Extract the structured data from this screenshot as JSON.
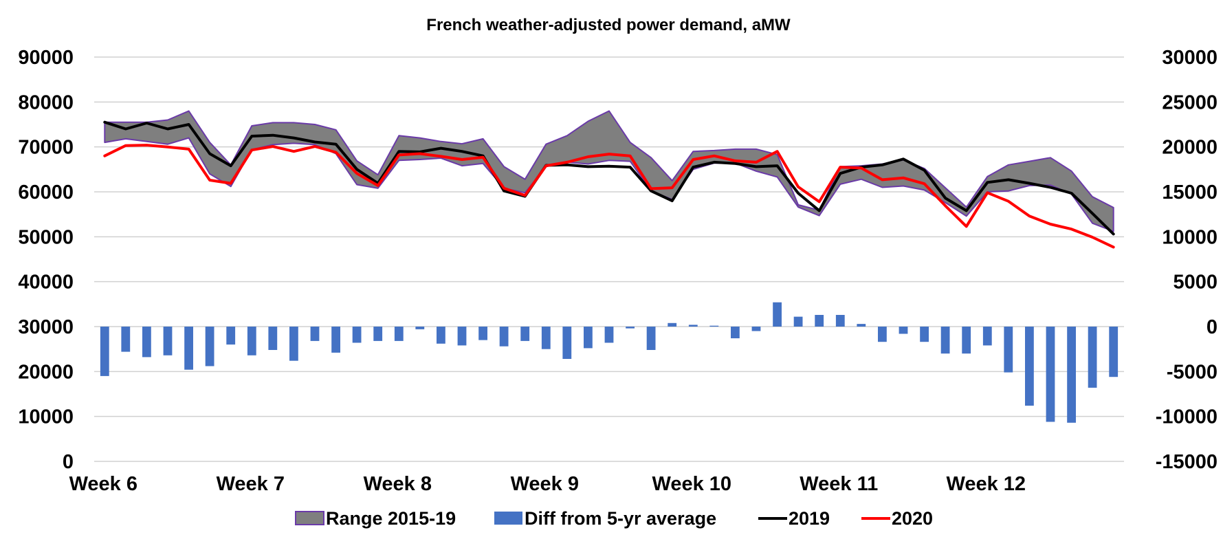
{
  "chart_data": {
    "type": "line",
    "title": "French weather-adjusted power demand, aMW",
    "x_labels": [
      "Week 6",
      "",
      "",
      "",
      "",
      "",
      "",
      "Week 7",
      "",
      "",
      "",
      "",
      "",
      "",
      "Week 8",
      "",
      "",
      "",
      "",
      "",
      "",
      "Week 9",
      "",
      "",
      "",
      "",
      "",
      "",
      "Week 10",
      "",
      "",
      "",
      "",
      "",
      "",
      "Week 11",
      "",
      "",
      "",
      "",
      "",
      "",
      "Week 12",
      "",
      "",
      "",
      "",
      "",
      ""
    ],
    "y_left": {
      "min": 0,
      "max": 90000,
      "ticks": [
        "0",
        "10000",
        "20000",
        "30000",
        "40000",
        "50000",
        "60000",
        "70000",
        "80000",
        "90000"
      ]
    },
    "y_right": {
      "min": -15000,
      "max": 30000,
      "ticks": [
        "-15000",
        "-10000",
        "-5000",
        "0",
        "5000",
        "10000",
        "15000",
        "20000",
        "25000",
        "30000"
      ]
    },
    "grid": true,
    "legend_position": "bottom",
    "series": [
      {
        "name": "Range 2015-19",
        "type": "area-range",
        "axis": "left",
        "color": "#7f7f7f",
        "border_color": "#6a3aa8",
        "upper": [
          75500,
          75500,
          75500,
          76000,
          78000,
          71000,
          66000,
          74700,
          75400,
          75400,
          75000,
          73800,
          66900,
          63800,
          72500,
          72000,
          71200,
          70700,
          71800,
          65600,
          62800,
          70600,
          72500,
          75700,
          78000,
          71000,
          67600,
          62500,
          69000,
          69200,
          69500,
          69500,
          68300,
          57100,
          55900,
          65600,
          65800,
          66200,
          67100,
          65200,
          60900,
          56600,
          63400,
          66000,
          66800,
          67600,
          64600,
          58900,
          56500
        ],
        "lower": [
          71000,
          71800,
          71200,
          70600,
          72000,
          64000,
          61200,
          69400,
          70500,
          70800,
          70500,
          68500,
          61600,
          60800,
          67000,
          67200,
          67500,
          65800,
          66300,
          60800,
          59800,
          65600,
          66600,
          66200,
          67000,
          66800,
          60200,
          58300,
          65000,
          66400,
          66400,
          64600,
          63300,
          56600,
          54700,
          61700,
          62800,
          61000,
          61300,
          60400,
          57600,
          54600,
          60000,
          60200,
          61400,
          61500,
          59500,
          53000,
          51200
        ]
      },
      {
        "name": "Diff from 5-yr average",
        "type": "bar",
        "axis": "right",
        "color": "#4472c4",
        "values": [
          -5500,
          -2800,
          -3400,
          -3200,
          -4800,
          -4400,
          -2000,
          -3200,
          -2600,
          -3800,
          -1600,
          -2900,
          -1800,
          -1600,
          -1600,
          -300,
          -1900,
          -2100,
          -1500,
          -2200,
          -1600,
          -2500,
          -3600,
          -2400,
          -1800,
          -200,
          -2600,
          400,
          200,
          100,
          -1300,
          -500,
          2700,
          1100,
          1300,
          1300,
          300,
          -1700,
          -800,
          -1700,
          -3000,
          -3000,
          -2100,
          -5100,
          -8800,
          -10600,
          -10700,
          -6800,
          -5600
        ]
      },
      {
        "name": "2019",
        "type": "line",
        "axis": "left",
        "color": "#000000",
        "values": [
          75500,
          74000,
          75300,
          74000,
          75000,
          68500,
          65800,
          72400,
          72600,
          72000,
          71100,
          70600,
          65000,
          61900,
          69000,
          68900,
          69700,
          69000,
          68000,
          60200,
          59000,
          65900,
          66000,
          65600,
          65700,
          65500,
          60200,
          58000,
          65500,
          66600,
          66300,
          65600,
          65800,
          59700,
          55800,
          64100,
          65500,
          66000,
          67300,
          64800,
          58600,
          55800,
          62100,
          62700,
          61900,
          61000,
          59700,
          55200,
          50600
        ]
      },
      {
        "name": "2020",
        "type": "line",
        "axis": "left",
        "color": "#ff0000",
        "values": [
          68000,
          70300,
          70400,
          70000,
          69500,
          62600,
          61900,
          69300,
          70100,
          69000,
          70100,
          68800,
          64100,
          61400,
          68200,
          68500,
          67900,
          67200,
          67700,
          60800,
          59200,
          65800,
          66600,
          67800,
          68400,
          68000,
          60700,
          60900,
          67200,
          68000,
          66900,
          66600,
          69000,
          61100,
          57800,
          65500,
          65300,
          62700,
          63100,
          61800,
          56900,
          52300,
          59800,
          57900,
          54600,
          52800,
          51700,
          49900,
          47700
        ]
      }
    ]
  }
}
